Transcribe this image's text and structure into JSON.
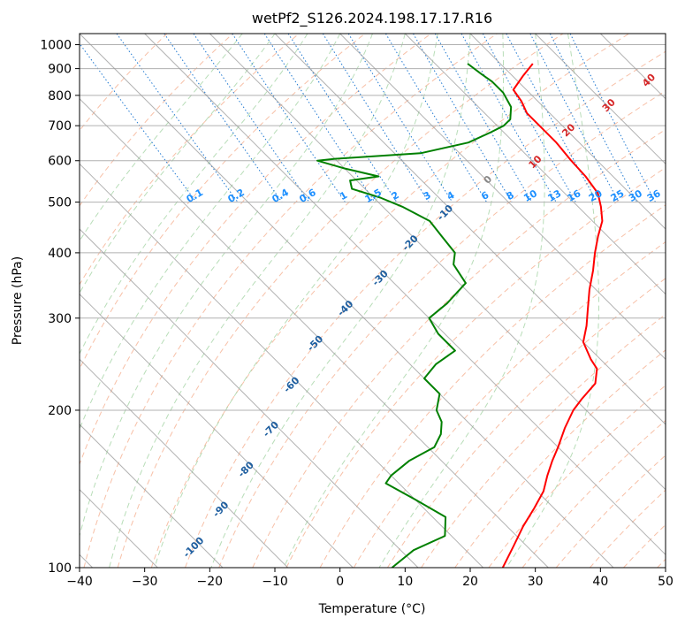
{
  "chart_data": {
    "type": "line",
    "diagram": "skew-t log-p",
    "title": "wetPf2_S126.2024.198.17.17.R16",
    "xlabel": "Temperature (°C)",
    "ylabel": "Pressure (hPa)",
    "xlim": [
      -40,
      50
    ],
    "ylim": [
      1050,
      100
    ],
    "y_scale": "log",
    "x_ticks": [
      -40,
      -30,
      -20,
      -10,
      0,
      10,
      20,
      30,
      40,
      50
    ],
    "y_ticks": [
      100,
      200,
      300,
      400,
      500,
      600,
      700,
      800,
      900,
      1000
    ],
    "grid": true,
    "colors": {
      "temperature": "#ff0000",
      "dewpoint": "#008000",
      "isotherm": "#999999",
      "dry_adiabat": "#f4a582",
      "moist_adiabat": "#a6d4a6",
      "mixing_ratio": "#1f78d1",
      "isotherm_label": "#1f5fa0",
      "mixing_label": "#1e90ff",
      "hot_label": "#d62728"
    },
    "isotherm_labels": [
      "-100",
      "-90",
      "-80",
      "-70",
      "-60",
      "-50",
      "-40",
      "-30",
      "-20",
      "-10"
    ],
    "mixing_ratio_labels": [
      "0.1",
      "0.2",
      "0.4",
      "0.6",
      "1",
      "1.5",
      "2",
      "3",
      "4",
      "6",
      "8",
      "10",
      "13",
      "16",
      "20",
      "25",
      "30",
      "36"
    ],
    "zero_label": "0",
    "warm_isotherm_labels": [
      "10",
      "20",
      "30",
      "40"
    ],
    "series": [
      {
        "id": "temperature",
        "pressure": [
          920,
          870,
          820,
          780,
          740,
          700,
          650,
          600,
          560,
          520,
          490,
          460,
          430,
          400,
          370,
          340,
          310,
          290,
          270,
          250,
          240,
          225,
          210,
          200,
          185,
          170,
          160,
          150,
          140,
          130,
          120,
          110,
          100
        ],
        "temperature": [
          25,
          21.5,
          18,
          17.5,
          16.5,
          16.5,
          16.5,
          16,
          15.8,
          15.1,
          13.5,
          11.5,
          8.5,
          5.5,
          2.5,
          -1,
          -4.5,
          -7,
          -10,
          -11.5,
          -12,
          -14.5,
          -19,
          -22,
          -26,
          -30,
          -33,
          -36,
          -39,
          -43,
          -47.5,
          -52,
          -57
        ]
      },
      {
        "id": "dewpoint",
        "pressure": [
          920,
          880,
          850,
          810,
          760,
          720,
          700,
          680,
          650,
          620,
          605,
          600,
          580,
          560,
          550,
          530,
          510,
          490,
          460,
          430,
          400,
          380,
          350,
          320,
          300,
          280,
          260,
          245,
          230,
          215,
          200,
          190,
          180,
          170,
          160,
          150,
          145,
          135,
          125,
          115,
          108,
          100
        ],
        "temperature": [
          15,
          15.5,
          16,
          16,
          15,
          13,
          11,
          8,
          3,
          -6,
          -20,
          -23,
          -20,
          -16,
          -21,
          -22,
          -19,
          -17,
          -15,
          -15.5,
          -16,
          -18,
          -19,
          -25,
          -30,
          -31,
          -31,
          -36,
          -40,
          -40,
          -43,
          -44,
          -46,
          -49,
          -55,
          -60,
          -62,
          -60,
          -58,
          -61,
          -68,
          -74
        ]
      }
    ]
  }
}
